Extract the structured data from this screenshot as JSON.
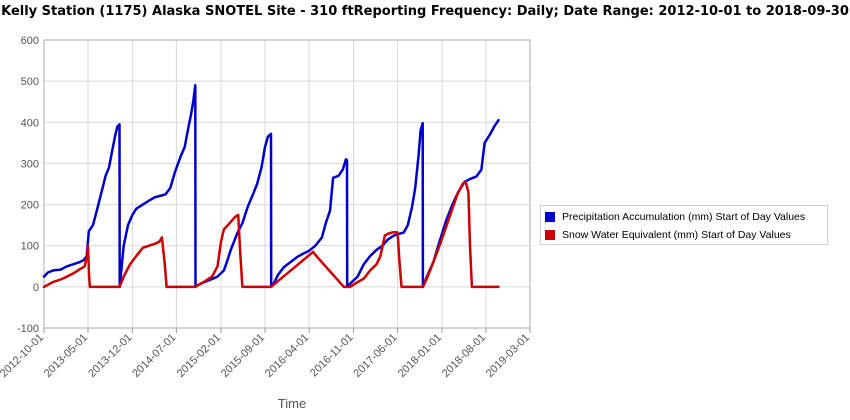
{
  "title": "Kelly Station (1175) Alaska  SNOTEL Site - 310 ftReporting Frequency: Daily; Date Range: 2012-10-01 to 2018-09-30",
  "chart_data": {
    "type": "line",
    "title": "Kelly Station (1175) Alaska  SNOTEL Site - 310 ftReporting Frequency: Daily; Date Range: 2012-10-01 to 2018-09-30",
    "xlabel": "Time",
    "ylabel": "",
    "xlim": [
      "2012-10-01",
      "2019-03-01"
    ],
    "ylim": [
      -100,
      600
    ],
    "yticks": [
      -100,
      0,
      100,
      200,
      300,
      400,
      500,
      600
    ],
    "ytick_labels": [
      "-100",
      "0",
      "100",
      "200",
      "300",
      "400",
      "500",
      "600"
    ],
    "xticks": [
      "2012-10-01",
      "2013-05-01",
      "2013-12-01",
      "2014-07-01",
      "2015-02-01",
      "2015-09-01",
      "2016-04-01",
      "2016-11-01",
      "2017-06-01",
      "2018-01-01",
      "2018-08-01",
      "2019-03-01"
    ],
    "xtick_labels": [
      "2012-10-01",
      "2013-05-01",
      "2013-12-01",
      "2014-07-01",
      "2015-02-01",
      "2015-09-01",
      "2016-04-01",
      "2016-11-01",
      "2017-06-01",
      "2018-01-01",
      "2018-08-01",
      "2019-03-01"
    ],
    "grid": true,
    "legend_position": "right",
    "series": [
      {
        "name": "Precipitation Accumulation (mm) Start of Day Values",
        "color": "#0000cc",
        "points": [
          [
            "2012-10-01",
            25
          ],
          [
            "2012-10-20",
            35
          ],
          [
            "2012-11-15",
            40
          ],
          [
            "2012-12-20",
            42
          ],
          [
            "2013-01-20",
            50
          ],
          [
            "2013-02-20",
            55
          ],
          [
            "2013-03-20",
            60
          ],
          [
            "2013-04-10",
            65
          ],
          [
            "2013-04-25",
            75
          ],
          [
            "2013-05-05",
            135
          ],
          [
            "2013-05-25",
            150
          ],
          [
            "2013-06-15",
            190
          ],
          [
            "2013-07-05",
            230
          ],
          [
            "2013-07-25",
            270
          ],
          [
            "2013-08-10",
            290
          ],
          [
            "2013-08-25",
            330
          ],
          [
            "2013-09-10",
            370
          ],
          [
            "2013-09-20",
            390
          ],
          [
            "2013-09-30",
            395
          ],
          [
            "2013-10-01",
            0
          ],
          [
            "2013-10-20",
            100
          ],
          [
            "2013-11-10",
            150
          ],
          [
            "2013-12-01",
            175
          ],
          [
            "2013-12-20",
            190
          ],
          [
            "2014-01-20",
            200
          ],
          [
            "2014-02-20",
            210
          ],
          [
            "2014-03-20",
            218
          ],
          [
            "2014-04-20",
            222
          ],
          [
            "2014-05-10",
            225
          ],
          [
            "2014-06-01",
            240
          ],
          [
            "2014-06-25",
            280
          ],
          [
            "2014-07-20",
            315
          ],
          [
            "2014-08-10",
            340
          ],
          [
            "2014-08-25",
            380
          ],
          [
            "2014-09-10",
            420
          ],
          [
            "2014-09-20",
            450
          ],
          [
            "2014-09-30",
            490
          ],
          [
            "2014-10-01",
            0
          ],
          [
            "2014-10-15",
            5
          ],
          [
            "2014-11-15",
            12
          ],
          [
            "2014-12-15",
            18
          ],
          [
            "2015-01-15",
            25
          ],
          [
            "2015-02-15",
            40
          ],
          [
            "2015-03-01",
            60
          ],
          [
            "2015-03-20",
            90
          ],
          [
            "2015-04-20",
            130
          ],
          [
            "2015-05-15",
            155
          ],
          [
            "2015-06-10",
            195
          ],
          [
            "2015-07-05",
            225
          ],
          [
            "2015-07-25",
            250
          ],
          [
            "2015-08-15",
            290
          ],
          [
            "2015-09-01",
            340
          ],
          [
            "2015-09-15",
            365
          ],
          [
            "2015-09-30",
            372
          ],
          [
            "2015-10-01",
            0
          ],
          [
            "2015-10-10",
            5
          ],
          [
            "2015-11-01",
            28
          ],
          [
            "2015-12-01",
            48
          ],
          [
            "2016-01-01",
            60
          ],
          [
            "2016-02-01",
            72
          ],
          [
            "2016-03-01",
            80
          ],
          [
            "2016-04-01",
            88
          ],
          [
            "2016-05-01",
            100
          ],
          [
            "2016-06-01",
            120
          ],
          [
            "2016-06-20",
            155
          ],
          [
            "2016-07-10",
            185
          ],
          [
            "2016-07-25",
            265
          ],
          [
            "2016-08-20",
            270
          ],
          [
            "2016-09-10",
            285
          ],
          [
            "2016-09-25",
            310
          ],
          [
            "2016-09-30",
            308
          ],
          [
            "2016-10-01",
            0
          ],
          [
            "2016-10-20",
            10
          ],
          [
            "2016-11-20",
            25
          ],
          [
            "2016-12-20",
            55
          ],
          [
            "2017-01-20",
            75
          ],
          [
            "2017-02-20",
            90
          ],
          [
            "2017-03-20",
            100
          ],
          [
            "2017-04-15",
            115
          ],
          [
            "2017-05-15",
            125
          ],
          [
            "2017-06-15",
            130
          ],
          [
            "2017-07-01",
            132
          ],
          [
            "2017-07-20",
            150
          ],
          [
            "2017-08-10",
            195
          ],
          [
            "2017-08-25",
            240
          ],
          [
            "2017-09-10",
            320
          ],
          [
            "2017-09-20",
            380
          ],
          [
            "2017-09-30",
            398
          ],
          [
            "2017-10-01",
            0
          ],
          [
            "2017-10-20",
            25
          ],
          [
            "2017-11-20",
            60
          ],
          [
            "2017-12-20",
            110
          ],
          [
            "2018-01-20",
            160
          ],
          [
            "2018-02-20",
            200
          ],
          [
            "2018-03-20",
            230
          ],
          [
            "2018-04-20",
            255
          ],
          [
            "2018-05-15",
            262
          ],
          [
            "2018-06-15",
            268
          ],
          [
            "2018-07-10",
            285
          ],
          [
            "2018-07-25",
            350
          ],
          [
            "2018-08-20",
            370
          ],
          [
            "2018-09-10",
            390
          ],
          [
            "2018-09-30",
            405
          ]
        ]
      },
      {
        "name": "Snow Water Equivalent (mm) Start of Day Values",
        "color": "#cc0000",
        "points": [
          [
            "2012-10-01",
            0
          ],
          [
            "2012-10-20",
            5
          ],
          [
            "2012-11-15",
            12
          ],
          [
            "2012-12-20",
            18
          ],
          [
            "2013-01-20",
            25
          ],
          [
            "2013-02-20",
            33
          ],
          [
            "2013-03-20",
            42
          ],
          [
            "2013-04-15",
            50
          ],
          [
            "2013-04-28",
            80
          ],
          [
            "2013-05-01",
            100
          ],
          [
            "2013-05-06",
            30
          ],
          [
            "2013-05-10",
            0
          ],
          [
            "2013-09-30",
            0
          ],
          [
            "2013-10-20",
            25
          ],
          [
            "2013-11-20",
            55
          ],
          [
            "2013-12-20",
            75
          ],
          [
            "2014-01-20",
            95
          ],
          [
            "2014-02-20",
            100
          ],
          [
            "2014-03-20",
            105
          ],
          [
            "2014-04-10",
            110
          ],
          [
            "2014-04-22",
            120
          ],
          [
            "2014-05-05",
            60
          ],
          [
            "2014-05-15",
            0
          ],
          [
            "2014-10-01",
            0
          ],
          [
            "2014-10-15",
            5
          ],
          [
            "2014-11-20",
            15
          ],
          [
            "2014-12-20",
            25
          ],
          [
            "2015-01-15",
            50
          ],
          [
            "2015-02-01",
            110
          ],
          [
            "2015-02-15",
            140
          ],
          [
            "2015-03-15",
            155
          ],
          [
            "2015-04-10",
            170
          ],
          [
            "2015-04-25",
            175
          ],
          [
            "2015-05-05",
            80
          ],
          [
            "2015-05-15",
            0
          ],
          [
            "2015-09-30",
            0
          ],
          [
            "2016-04-20",
            85
          ],
          [
            "2016-05-05",
            75
          ],
          [
            "2016-09-15",
            0
          ],
          [
            "2016-10-15",
            0
          ],
          [
            "2016-11-15",
            10
          ],
          [
            "2016-12-20",
            20
          ],
          [
            "2017-01-20",
            40
          ],
          [
            "2017-02-20",
            55
          ],
          [
            "2017-03-10",
            75
          ],
          [
            "2017-04-01",
            125
          ],
          [
            "2017-04-20",
            130
          ],
          [
            "2017-05-15",
            133
          ],
          [
            "2017-06-01",
            132
          ],
          [
            "2017-06-10",
            60
          ],
          [
            "2017-06-20",
            0
          ],
          [
            "2017-10-01",
            0
          ],
          [
            "2017-10-20",
            20
          ],
          [
            "2017-11-20",
            60
          ],
          [
            "2017-12-20",
            100
          ],
          [
            "2018-01-20",
            145
          ],
          [
            "2018-02-20",
            190
          ],
          [
            "2018-03-20",
            230
          ],
          [
            "2018-04-10",
            250
          ],
          [
            "2018-04-25",
            255
          ],
          [
            "2018-05-08",
            230
          ],
          [
            "2018-05-16",
            100
          ],
          [
            "2018-05-25",
            0
          ],
          [
            "2018-09-30",
            0
          ]
        ]
      }
    ]
  }
}
